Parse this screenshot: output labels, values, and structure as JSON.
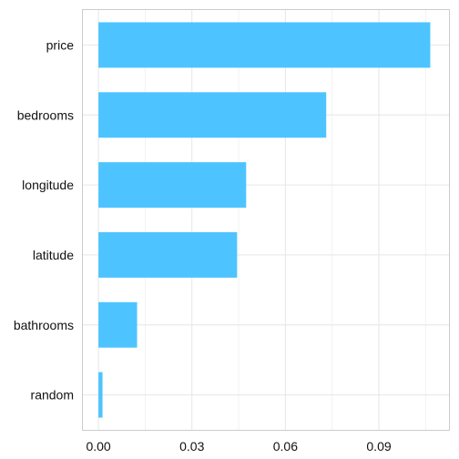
{
  "chart_data": {
    "type": "bar",
    "orientation": "horizontal",
    "categories": [
      "price",
      "bedrooms",
      "longitude",
      "latitude",
      "bathrooms",
      "random"
    ],
    "values": [
      0.1065,
      0.0731,
      0.0474,
      0.0445,
      0.0124,
      0.0013
    ],
    "xlim": [
      -0.005,
      0.1125
    ],
    "x_ticks": [
      "0.00",
      "0.03",
      "0.06",
      "0.09"
    ],
    "x_tick_values": [
      0.0,
      0.03,
      0.06,
      0.09
    ],
    "title": "",
    "xlabel": "",
    "ylabel": "",
    "grid": true,
    "bar_color": "#4dc4ff"
  }
}
